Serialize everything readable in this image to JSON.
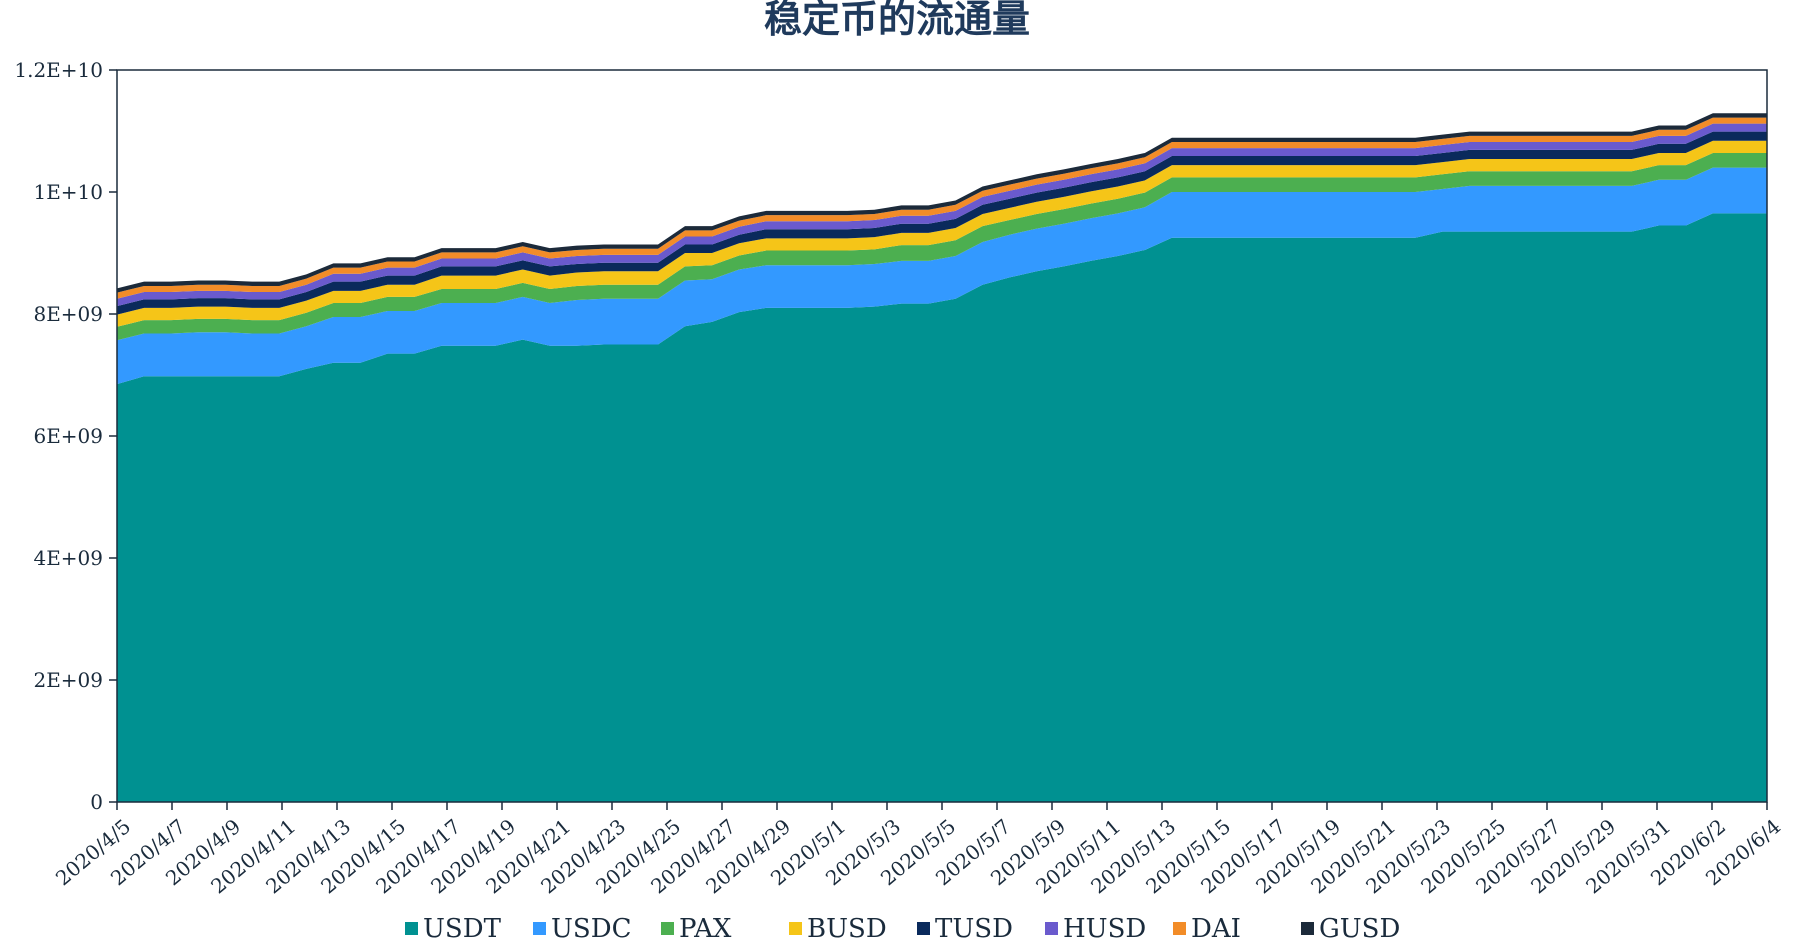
{
  "chart_data": {
    "type": "area",
    "stacked": true,
    "title": "稳定币的流通量",
    "xlabel": "",
    "ylabel": "",
    "ylim": [
      0,
      12000000000
    ],
    "y_ticks": [
      "0",
      "2E+09",
      "4E+09",
      "6E+09",
      "8E+09",
      "1E+10",
      "1.2E+10"
    ],
    "x_tick_labels": [
      "2020/4/5",
      "2020/4/7",
      "2020/4/9",
      "2020/4/11",
      "2020/4/13",
      "2020/4/15",
      "2020/4/17",
      "2020/4/19",
      "2020/4/21",
      "2020/4/23",
      "2020/4/25",
      "2020/4/27",
      "2020/4/29",
      "2020/5/1",
      "2020/5/3",
      "2020/5/5",
      "2020/5/7",
      "2020/5/9",
      "2020/5/11",
      "2020/5/13",
      "2020/5/15",
      "2020/5/17",
      "2020/5/19",
      "2020/5/21",
      "2020/5/23",
      "2020/5/25",
      "2020/5/27",
      "2020/5/29",
      "2020/5/31",
      "2020/6/2",
      "2020/6/4"
    ],
    "legend_position": "bottom",
    "grid": false,
    "series": [
      {
        "name": "USDT",
        "color": "#009191",
        "values": [
          6.85,
          6.98,
          6.98,
          6.98,
          6.98,
          6.98,
          6.98,
          7.1,
          7.2,
          7.2,
          7.35,
          7.35,
          7.48,
          7.48,
          7.48,
          7.58,
          7.48,
          7.48,
          7.5,
          7.5,
          7.5,
          7.8,
          7.87,
          8.03,
          8.1,
          8.1,
          8.1,
          8.1,
          8.12,
          8.17,
          8.17,
          8.25,
          8.48,
          8.6,
          8.7,
          8.78,
          8.87,
          8.95,
          9.05,
          9.25,
          9.25,
          9.25,
          9.25,
          9.25,
          9.25,
          9.25,
          9.25,
          9.25,
          9.25,
          9.35,
          9.35,
          9.35,
          9.35,
          9.35,
          9.35,
          9.35,
          9.35,
          9.45,
          9.45,
          9.65,
          9.65,
          9.65
        ]
      },
      {
        "name": "USDC",
        "color": "#3399ff",
        "values": [
          0.72,
          0.7,
          0.7,
          0.72,
          0.72,
          0.7,
          0.7,
          0.7,
          0.75,
          0.75,
          0.7,
          0.7,
          0.7,
          0.7,
          0.7,
          0.7,
          0.7,
          0.75,
          0.75,
          0.75,
          0.75,
          0.75,
          0.7,
          0.7,
          0.7,
          0.7,
          0.7,
          0.7,
          0.7,
          0.7,
          0.7,
          0.7,
          0.7,
          0.7,
          0.7,
          0.7,
          0.7,
          0.7,
          0.7,
          0.75,
          0.75,
          0.75,
          0.75,
          0.75,
          0.75,
          0.75,
          0.75,
          0.75,
          0.75,
          0.7,
          0.75,
          0.75,
          0.75,
          0.75,
          0.75,
          0.75,
          0.75,
          0.75,
          0.75,
          0.75,
          0.75,
          0.75
        ]
      },
      {
        "name": "PAX",
        "color": "#4caf50",
        "values": [
          0.22,
          0.22,
          0.22,
          0.22,
          0.22,
          0.22,
          0.22,
          0.22,
          0.23,
          0.23,
          0.23,
          0.23,
          0.23,
          0.23,
          0.23,
          0.23,
          0.23,
          0.23,
          0.23,
          0.23,
          0.23,
          0.23,
          0.23,
          0.23,
          0.24,
          0.24,
          0.24,
          0.24,
          0.24,
          0.26,
          0.26,
          0.26,
          0.26,
          0.24,
          0.24,
          0.24,
          0.24,
          0.24,
          0.24,
          0.24,
          0.24,
          0.24,
          0.24,
          0.24,
          0.24,
          0.24,
          0.24,
          0.24,
          0.24,
          0.24,
          0.24,
          0.24,
          0.24,
          0.24,
          0.24,
          0.24,
          0.24,
          0.24,
          0.24,
          0.24,
          0.24,
          0.24
        ]
      },
      {
        "name": "BUSD",
        "color": "#f5c518",
        "values": [
          0.2,
          0.2,
          0.2,
          0.2,
          0.2,
          0.2,
          0.2,
          0.2,
          0.2,
          0.2,
          0.2,
          0.2,
          0.22,
          0.22,
          0.22,
          0.22,
          0.22,
          0.22,
          0.22,
          0.22,
          0.22,
          0.22,
          0.2,
          0.2,
          0.2,
          0.2,
          0.2,
          0.2,
          0.2,
          0.2,
          0.2,
          0.2,
          0.2,
          0.2,
          0.2,
          0.2,
          0.2,
          0.2,
          0.2,
          0.2,
          0.2,
          0.2,
          0.2,
          0.2,
          0.2,
          0.2,
          0.2,
          0.2,
          0.2,
          0.2,
          0.2,
          0.2,
          0.2,
          0.2,
          0.2,
          0.2,
          0.2,
          0.2,
          0.2,
          0.2,
          0.2,
          0.2
        ]
      },
      {
        "name": "TUSD",
        "color": "#0a2a5c",
        "values": [
          0.14,
          0.14,
          0.14,
          0.14,
          0.14,
          0.14,
          0.14,
          0.14,
          0.15,
          0.15,
          0.15,
          0.15,
          0.15,
          0.15,
          0.15,
          0.15,
          0.15,
          0.14,
          0.14,
          0.14,
          0.14,
          0.14,
          0.14,
          0.14,
          0.15,
          0.15,
          0.15,
          0.15,
          0.15,
          0.15,
          0.15,
          0.15,
          0.15,
          0.15,
          0.15,
          0.15,
          0.15,
          0.15,
          0.15,
          0.15,
          0.15,
          0.15,
          0.15,
          0.15,
          0.15,
          0.15,
          0.15,
          0.15,
          0.15,
          0.15,
          0.15,
          0.15,
          0.15,
          0.15,
          0.15,
          0.15,
          0.15,
          0.15,
          0.15,
          0.15,
          0.15,
          0.15
        ]
      },
      {
        "name": "HUSD",
        "color": "#6a5acd",
        "values": [
          0.12,
          0.12,
          0.12,
          0.12,
          0.12,
          0.12,
          0.12,
          0.12,
          0.13,
          0.13,
          0.13,
          0.13,
          0.13,
          0.13,
          0.13,
          0.13,
          0.13,
          0.13,
          0.13,
          0.13,
          0.13,
          0.13,
          0.13,
          0.13,
          0.13,
          0.13,
          0.13,
          0.13,
          0.13,
          0.13,
          0.13,
          0.13,
          0.13,
          0.13,
          0.13,
          0.13,
          0.13,
          0.13,
          0.13,
          0.13,
          0.13,
          0.13,
          0.13,
          0.13,
          0.13,
          0.13,
          0.13,
          0.13,
          0.13,
          0.13,
          0.13,
          0.13,
          0.13,
          0.13,
          0.13,
          0.13,
          0.13,
          0.13,
          0.13,
          0.13,
          0.13,
          0.13
        ]
      },
      {
        "name": "DAI",
        "color": "#f28c28",
        "values": [
          0.1,
          0.1,
          0.1,
          0.1,
          0.1,
          0.1,
          0.1,
          0.1,
          0.1,
          0.1,
          0.1,
          0.1,
          0.1,
          0.1,
          0.1,
          0.1,
          0.1,
          0.1,
          0.1,
          0.1,
          0.1,
          0.1,
          0.1,
          0.1,
          0.1,
          0.1,
          0.1,
          0.1,
          0.1,
          0.1,
          0.1,
          0.1,
          0.1,
          0.1,
          0.1,
          0.1,
          0.1,
          0.1,
          0.1,
          0.1,
          0.1,
          0.1,
          0.1,
          0.1,
          0.1,
          0.1,
          0.1,
          0.1,
          0.1,
          0.1,
          0.1,
          0.1,
          0.1,
          0.1,
          0.1,
          0.1,
          0.1,
          0.1,
          0.1,
          0.1,
          0.1,
          0.1
        ]
      },
      {
        "name": "GUSD",
        "color": "#1c2a3a",
        "values": [
          0.07,
          0.07,
          0.07,
          0.07,
          0.07,
          0.07,
          0.07,
          0.07,
          0.07,
          0.07,
          0.07,
          0.07,
          0.07,
          0.07,
          0.07,
          0.07,
          0.07,
          0.07,
          0.07,
          0.07,
          0.07,
          0.07,
          0.07,
          0.07,
          0.07,
          0.07,
          0.07,
          0.07,
          0.07,
          0.07,
          0.07,
          0.07,
          0.07,
          0.07,
          0.07,
          0.07,
          0.07,
          0.07,
          0.07,
          0.07,
          0.07,
          0.07,
          0.07,
          0.07,
          0.07,
          0.07,
          0.07,
          0.07,
          0.07,
          0.07,
          0.07,
          0.07,
          0.07,
          0.07,
          0.07,
          0.07,
          0.07,
          0.07,
          0.07,
          0.07,
          0.07,
          0.07
        ]
      }
    ],
    "value_unit_multiplier": 1000000000
  }
}
